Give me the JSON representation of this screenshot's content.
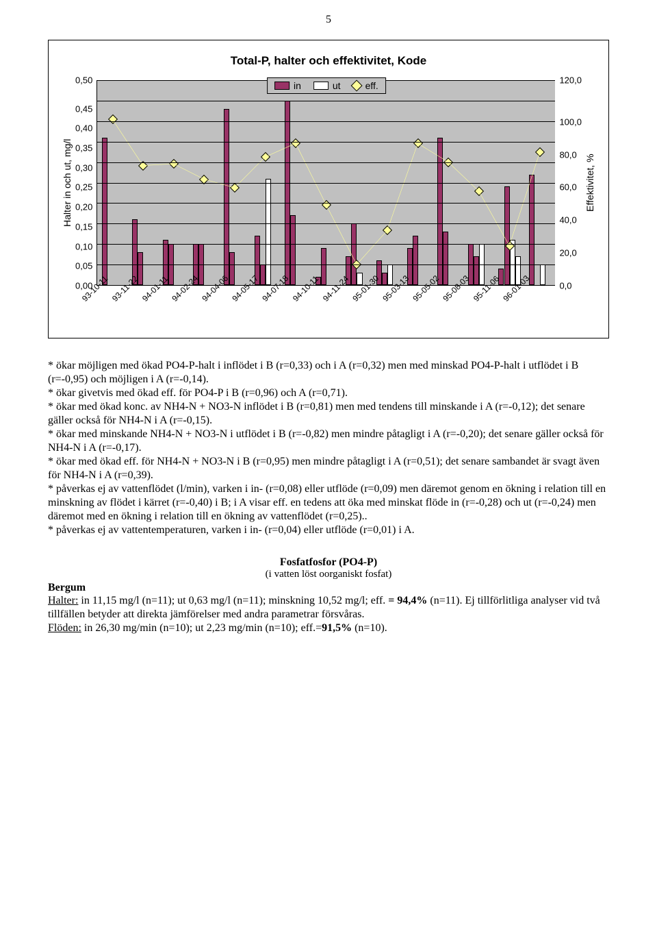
{
  "page_number": "5",
  "chart": {
    "type": "bar+line",
    "title": "Total-P, halter och effektivitet, Kode",
    "background_color": "#c0c0c0",
    "grid_color": "#000000",
    "y_left": {
      "label": "Halter in och ut, mg/l",
      "min": 0.0,
      "max": 0.5,
      "ticks": [
        "0,50",
        "0,45",
        "0,40",
        "0,35",
        "0,30",
        "0,25",
        "0,20",
        "0,15",
        "0,10",
        "0,05",
        "0,00"
      ]
    },
    "y_right": {
      "label": "Effektivitet, %",
      "min": 0.0,
      "max": 120.0,
      "ticks": [
        "120,0",
        "100,0",
        "80,0",
        "60,0",
        "40,0",
        "20,0",
        "0,0"
      ]
    },
    "legend": {
      "in_label": "in",
      "in_color": "#993366",
      "ut_label": "ut",
      "ut_color": "#ffffff",
      "eff_label": "eff.",
      "eff_color": "#ffff99",
      "eff_line_color": "#ffff99"
    },
    "categories": [
      "93-10-11",
      "93-11-22",
      "94-01-11",
      "94-02-24",
      "94-04-06",
      "94-05-17",
      "94-07-18",
      "94-10-11",
      "94-11-24",
      "95-01-30",
      "95-03-13",
      "95-05-02",
      "95-08-03",
      "95-11-06",
      "96-01-03"
    ],
    "series_in": [
      0.36,
      0.16,
      0.08,
      0.11,
      0.1,
      0.1,
      0.43,
      0.08,
      0.12,
      0.26,
      0.45,
      0.17,
      0.02,
      0.09,
      0.07
    ],
    "series_ut": [
      0.0,
      0.0,
      0.0,
      0.0,
      0.0,
      0.0,
      0.0,
      0.0,
      0.0,
      0.0,
      0.0,
      0.0,
      0.0,
      0.0,
      0.0
    ],
    "series_in2": [
      0.0,
      0.0,
      0.0,
      0.0,
      0.0,
      0.0,
      0.0,
      0.0,
      0.0,
      0.0,
      0.0,
      0.0,
      0.0,
      0.0,
      0.0
    ],
    "series_ut2": [
      0.0,
      0.0,
      0.0,
      0.0,
      0.0,
      0.0,
      0.0,
      0.0,
      0.0,
      0.0,
      0.0,
      0.0,
      0.0,
      0.0,
      0.0
    ],
    "in_values": [
      0.36,
      0.16,
      0.08,
      0.11,
      0.1,
      0.1,
      0.43,
      0.08,
      0.12,
      0.26,
      0.45,
      0.17,
      0.02,
      0.09,
      0.07
    ],
    "ut_values": [
      0.02,
      0.0,
      0.0,
      0.0,
      0.0,
      0.0,
      0.0,
      0.0,
      0.0,
      0.0,
      0.0,
      0.0,
      0.0,
      0.0,
      0.02
    ],
    "in_bars": [
      0.36,
      0.16,
      0.08,
      0.11,
      0.1,
      0.1,
      0.43,
      0.08,
      0.12,
      0.26,
      0.45,
      0.17,
      0.02,
      0.09,
      0.07
    ],
    "bars": [
      {
        "in": 0.36,
        "inb": 0.0,
        "ut": 0.0,
        "utb": 0.0
      },
      {
        "in": 0.16,
        "inb": 0.0,
        "ut": 0.0,
        "utb": 0.0
      }
    ],
    "data": [
      {
        "cat": "93-10-11",
        "in": 0.36,
        "in2": 0.0,
        "ut": 0.0,
        "ut2": 0.0,
        "eff": 97
      },
      {
        "cat": "93-11-22",
        "in": 0.16,
        "in2": 0.08,
        "ut": 0.0,
        "ut2": 0.0,
        "eff": 70
      },
      {
        "cat": "94-01-11",
        "in": 0.11,
        "in2": 0.1,
        "ut": 0.0,
        "ut2": 0.0,
        "eff": 71
      },
      {
        "cat": "94-02-24",
        "in": 0.1,
        "in2": 0.1,
        "ut": 0.0,
        "ut2": 0.0,
        "eff": 62
      },
      {
        "cat": "94-04-06",
        "in": 0.43,
        "in2": 0.08,
        "ut": 0.0,
        "ut2": 0.0,
        "eff": 57
      },
      {
        "cat": "94-05-17",
        "in": 0.12,
        "in2": 0.05,
        "ut": 0.26,
        "ut2": 0.0,
        "eff": 75
      },
      {
        "cat": "94-07-18",
        "in": 0.45,
        "in2": 0.17,
        "ut": 0.0,
        "ut2": 0.0,
        "eff": 83
      },
      {
        "cat": "94-10-11",
        "in": 0.02,
        "in2": 0.09,
        "ut": 0.0,
        "ut2": 0.0,
        "eff": 47
      },
      {
        "cat": "94-11-24",
        "in": 0.07,
        "in2": 0.15,
        "ut": 0.03,
        "ut2": 0.0,
        "eff": 12
      },
      {
        "cat": "95-01-30",
        "in": 0.06,
        "in2": 0.03,
        "ut": 0.05,
        "ut2": 0.0,
        "eff": 32
      },
      {
        "cat": "95-03-13",
        "in": 0.09,
        "in2": 0.12,
        "ut": 0.0,
        "ut2": 0.0,
        "eff": 83
      },
      {
        "cat": "95-05-02",
        "in": 0.36,
        "in2": 0.13,
        "ut": 0.0,
        "ut2": 0.0,
        "eff": 72
      },
      {
        "cat": "95-08-03",
        "in": 0.1,
        "in2": 0.07,
        "ut": 0.1,
        "ut2": 0.0,
        "eff": 55
      },
      {
        "cat": "95-11-06",
        "in": 0.04,
        "in2": 0.24,
        "ut": 0.11,
        "ut2": 0.07,
        "eff": 23
      },
      {
        "cat": "96-01-03",
        "in": 0.27,
        "in2": 0.0,
        "ut": 0.05,
        "ut2": 0.0,
        "eff": 78
      }
    ]
  },
  "body_paragraphs": [
    "* ökar möjligen med ökad PO4-P-halt i inflödet i B (r=0,33) och i A (r=0,32) men med minskad PO4-P-halt i utflödet i B (r=-0,95) och möjligen i A (r=-0,14).",
    "* ökar givetvis med ökad eff. för PO4-P i B (r=0,96) och A (r=0,71).",
    "* ökar med ökad konc. av NH4-N + NO3-N inflödet i B (r=0,81) men med tendens till minskande i A (r=-0,12); det senare gäller också för NH4-N i A (r=-0,15).",
    "* ökar med minskande NH4-N + NO3-N i utflödet i B (r=-0,82) men mindre påtagligt i A (r=-0,20); det senare gäller också för NH4-N i A (r=-0,17).",
    "* ökar med ökad eff. för NH4-N + NO3-N i B (r=0,95) men mindre påtagligt i A (r=0,51); det senare sambandet är svagt även för NH4-N i A (r=0,39).",
    "* påverkas ej av vattenflödet (l/min), varken i in- (r=0,08) eller utflöde (r=0,09) men däremot genom en ökning i relation till en minskning av flödet i kärret (r=-0,40) i B; i A visar eff. en tedens att öka  med minskat flöde in (r=-0,28) och ut (r=-0,24) men däremot med en ökning i relation till en ökning av vattenflödet (r=0,25)..",
    "* påverkas ej av vattentemperaturen, varken i in- (r=0,04) eller utflöde (r=0,01) i A."
  ],
  "section": {
    "heading": "Fosfatfosfor (PO4-P)",
    "sub": "(i vatten löst oorganiskt  fosfat)",
    "runner": "Bergum",
    "lines": [
      "<u>Halter:</u> in 11,15 mg/l (n=11); ut 0,63 mg/l (n=11); minskning 10,52 mg/l; eff. <b>= 94,4%</b> (n=11). Ej tillförlitliga analyser vid två tillfällen betyder att direkta jämförelser med andra parametrar försvåras.",
      "<u>Flöden:</u> in 26,30 mg/min (n=10); ut 2,23 mg/min (n=10); eff.=<b>91,5%</b> (n=10)."
    ]
  }
}
